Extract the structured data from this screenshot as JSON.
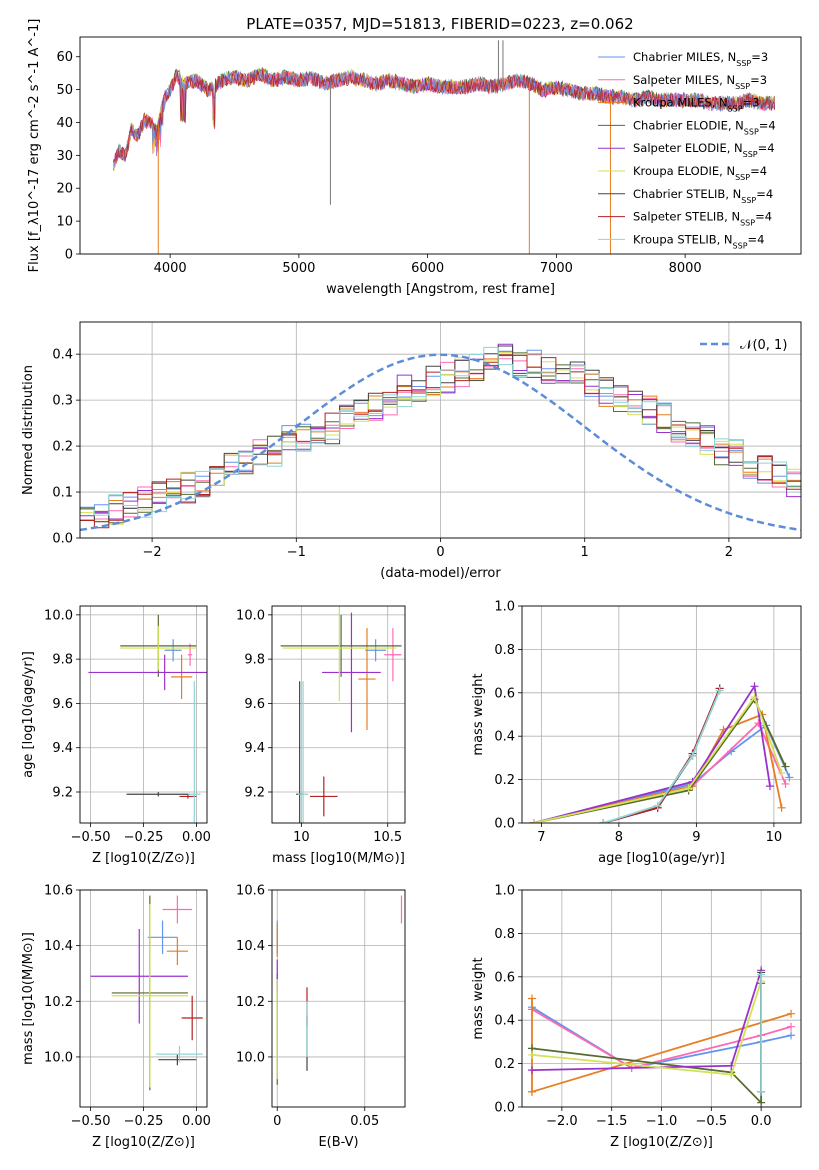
{
  "figure": {
    "title": "PLATE=0357, MJD=51813, FIBERID=0223, z=0.062"
  },
  "colors": {
    "chabrier_miles": "#6495ED",
    "salpeter_miles": "#FF69B4",
    "kroupa_miles": "#E67E22",
    "chabrier_elodie": "#556B2F",
    "salpeter_elodie": "#9932CC",
    "kroupa_elodie": "#D4E157",
    "chabrier_stelib": "#444444",
    "salpeter_stelib": "#B22222",
    "kroupa_stelib": "#8FD5D5",
    "gauss": "#5B8DD9",
    "grid": "#b0b0b0"
  },
  "chart_data": [
    {
      "id": "spectrum",
      "type": "line",
      "xlabel": "wavelength [Angstrom, rest frame]",
      "ylabel": "Flux [f_λ10^-17 erg cm^-2 s^-1 A^-1]",
      "xlim": [
        3300,
        8900
      ],
      "ylim": [
        0,
        66
      ],
      "xticks": [
        4000,
        5000,
        6000,
        7000,
        8000
      ],
      "yticks": [
        0,
        10,
        20,
        30,
        40,
        50,
        60
      ],
      "grid": false,
      "legend_position": "top-right",
      "legend": [
        {
          "label": "Chabrier MILES, N_SSP=3",
          "color_key": "chabrier_miles"
        },
        {
          "label": "Salpeter MILES, N_SSP=3",
          "color_key": "salpeter_miles"
        },
        {
          "label": "Kroupa MILES, N_SSP=3",
          "color_key": "kroupa_miles"
        },
        {
          "label": "Chabrier ELODIE, N_SSP=4",
          "color_key": "chabrier_elodie"
        },
        {
          "label": "Salpeter ELODIE, N_SSP=4",
          "color_key": "salpeter_elodie"
        },
        {
          "label": "Kroupa ELODIE, N_SSP=4",
          "color_key": "kroupa_elodie"
        },
        {
          "label": "Chabrier STELIB, N_SSP=4",
          "color_key": "chabrier_stelib"
        },
        {
          "label": "Salpeter STELIB, N_SSP=4",
          "color_key": "salpeter_stelib"
        },
        {
          "label": "Kroupa STELIB, N_SSP=4",
          "color_key": "kroupa_stelib"
        }
      ],
      "envelope": [
        [
          3560,
          27
        ],
        [
          3600,
          32
        ],
        [
          3650,
          30
        ],
        [
          3700,
          38
        ],
        [
          3750,
          36
        ],
        [
          3800,
          41
        ],
        [
          3850,
          40
        ],
        [
          3900,
          38
        ],
        [
          3950,
          47
        ],
        [
          4000,
          50
        ],
        [
          4050,
          55
        ],
        [
          4100,
          52
        ],
        [
          4200,
          53
        ],
        [
          4300,
          50
        ],
        [
          4400,
          53
        ],
        [
          4500,
          54
        ],
        [
          4600,
          53
        ],
        [
          4700,
          55
        ],
        [
          4800,
          53
        ],
        [
          4900,
          54
        ],
        [
          5000,
          53
        ],
        [
          5100,
          54
        ],
        [
          5200,
          52
        ],
        [
          5300,
          53
        ],
        [
          5400,
          54
        ],
        [
          5500,
          53
        ],
        [
          5600,
          52
        ],
        [
          5700,
          53
        ],
        [
          5800,
          52
        ],
        [
          5900,
          51
        ],
        [
          6000,
          52
        ],
        [
          6100,
          51
        ],
        [
          6200,
          51
        ],
        [
          6300,
          51
        ],
        [
          6400,
          52
        ],
        [
          6500,
          51
        ],
        [
          6600,
          52
        ],
        [
          6700,
          53
        ],
        [
          6800,
          52
        ],
        [
          6900,
          50
        ],
        [
          7000,
          51
        ],
        [
          7100,
          50
        ],
        [
          7200,
          49
        ],
        [
          7300,
          49
        ],
        [
          7400,
          48
        ],
        [
          7500,
          48
        ],
        [
          7600,
          47
        ],
        [
          7700,
          48
        ],
        [
          7800,
          47
        ],
        [
          7900,
          47
        ],
        [
          8000,
          47
        ],
        [
          8100,
          47
        ],
        [
          8200,
          46
        ],
        [
          8300,
          46
        ],
        [
          8400,
          46
        ],
        [
          8500,
          47
        ],
        [
          8600,
          46
        ],
        [
          8700,
          46
        ]
      ],
      "spikes": [
        {
          "x": 3908,
          "y": 0
        },
        {
          "x": 5245,
          "y": 15
        },
        {
          "x": 6550,
          "y": 65
        },
        {
          "x": 6585,
          "y": 65
        },
        {
          "x": 6790,
          "y": 0
        },
        {
          "x": 7420,
          "y": 0
        }
      ]
    },
    {
      "id": "residuals",
      "type": "histogram",
      "xlabel": "(data-model)/error",
      "ylabel": "Normed distribution",
      "xlim": [
        -2.5,
        2.5
      ],
      "ylim": [
        0,
        0.47
      ],
      "xticks": [
        -2,
        -1,
        0,
        1,
        2
      ],
      "yticks": [
        0.0,
        0.1,
        0.2,
        0.3,
        0.4
      ],
      "grid": true,
      "legend_position": "top-right",
      "legend": [
        {
          "label": "𝒩(0, 1)",
          "color_key": "gauss"
        }
      ],
      "bin_start": -2.5,
      "bin_width": 0.1,
      "mean_profile": [
        0.04,
        0.05,
        0.06,
        0.07,
        0.08,
        0.09,
        0.1,
        0.11,
        0.12,
        0.13,
        0.15,
        0.16,
        0.18,
        0.19,
        0.21,
        0.22,
        0.23,
        0.24,
        0.26,
        0.27,
        0.29,
        0.3,
        0.32,
        0.33,
        0.34,
        0.35,
        0.36,
        0.37,
        0.38,
        0.39,
        0.38,
        0.38,
        0.37,
        0.36,
        0.35,
        0.33,
        0.32,
        0.31,
        0.29,
        0.28,
        0.26,
        0.24,
        0.23,
        0.21,
        0.19,
        0.18,
        0.16,
        0.15,
        0.14,
        0.12
      ]
    },
    {
      "id": "age-vs-Z",
      "type": "errorbar",
      "xlabel": "Z [log10(Z/Z⊙)]",
      "ylabel": "age  [log10(age/yr)]",
      "xlim": [
        -0.55,
        0.05
      ],
      "ylim": [
        9.06,
        10.04
      ],
      "xticks": [
        -0.5,
        -0.25,
        0.0
      ],
      "xticklabels": [
        "−0.50",
        "−0.25",
        "0.00"
      ],
      "yticks": [
        9.2,
        9.4,
        9.6,
        9.8,
        10.0
      ],
      "grid": true,
      "points": [
        {
          "c": "chabrier_miles",
          "x": -0.11,
          "xe": 0.04,
          "y": 9.84,
          "ye": 0.05
        },
        {
          "c": "salpeter_miles",
          "x": -0.03,
          "xe": 0.01,
          "y": 9.82,
          "ye": 0.05
        },
        {
          "c": "kroupa_miles",
          "x": -0.07,
          "xe": 0.05,
          "y": 9.72,
          "ye": 0.1
        },
        {
          "c": "chabrier_elodie",
          "x": -0.18,
          "xe": 0.18,
          "y": 9.86,
          "ye": 0.14
        },
        {
          "c": "salpeter_elodie",
          "x": -0.15,
          "xe": 0.36,
          "y": 9.74,
          "ye": 0.08
        },
        {
          "c": "kroupa_elodie",
          "x": -0.18,
          "xe": 0.18,
          "y": 9.85,
          "ye": 0.1
        },
        {
          "c": "chabrier_stelib",
          "x": -0.18,
          "xe": 0.15,
          "y": 9.19,
          "ye": 0.01
        },
        {
          "c": "salpeter_stelib",
          "x": -0.04,
          "xe": 0.04,
          "y": 9.18,
          "ye": 0.01
        },
        {
          "c": "kroupa_stelib",
          "x": -0.01,
          "xe": 0.03,
          "y": 9.19,
          "ye": 0.51
        }
      ]
    },
    {
      "id": "age-vs-mass",
      "type": "errorbar",
      "xlabel": "mass [log10(M/M⊙)]",
      "ylabel": "",
      "xlim": [
        9.83,
        10.6
      ],
      "ylim": [
        9.06,
        10.04
      ],
      "xticks": [
        10.0,
        10.5
      ],
      "yticks": [
        9.2,
        9.4,
        9.6,
        9.8,
        10.0
      ],
      "grid": true,
      "points": [
        {
          "c": "chabrier_miles",
          "x": 10.43,
          "xe": 0.06,
          "y": 9.84,
          "ye": 0.05
        },
        {
          "c": "salpeter_miles",
          "x": 10.53,
          "xe": 0.05,
          "y": 9.82,
          "ye": 0.12
        },
        {
          "c": "kroupa_miles",
          "x": 10.38,
          "xe": 0.05,
          "y": 9.71,
          "ye": 0.23
        },
        {
          "c": "chabrier_elodie",
          "x": 10.23,
          "xe": 0.35,
          "y": 9.86,
          "ye": 0.14
        },
        {
          "c": "salpeter_elodie",
          "x": 10.29,
          "xe": 0.17,
          "y": 9.74,
          "ye": 0.27
        },
        {
          "c": "kroupa_elodie",
          "x": 10.22,
          "xe": 0.33,
          "y": 9.85,
          "ye": 0.24
        },
        {
          "c": "chabrier_stelib",
          "x": 9.99,
          "xe": 0.02,
          "y": 9.19,
          "ye": 0.51
        },
        {
          "c": "salpeter_stelib",
          "x": 10.13,
          "xe": 0.08,
          "y": 9.18,
          "ye": 0.09
        },
        {
          "c": "kroupa_stelib",
          "x": 10.01,
          "xe": 0.03,
          "y": 9.19,
          "ye": 0.51
        }
      ]
    },
    {
      "id": "weight-vs-age",
      "type": "line",
      "xlabel": "age  [log10(age/yr)]",
      "ylabel": "mass weight",
      "xlim": [
        6.75,
        10.35
      ],
      "ylim": [
        0,
        1.0
      ],
      "xticks": [
        7,
        8,
        9,
        10
      ],
      "yticks": [
        0.0,
        0.2,
        0.4,
        0.6,
        0.8,
        1.0
      ],
      "grid": true,
      "series": [
        {
          "c": "chabrier_miles",
          "x": [
            6.9,
            8.95,
            9.45,
            9.9,
            10.2
          ],
          "y": [
            0.0,
            0.18,
            0.33,
            0.45,
            0.21
          ]
        },
        {
          "c": "salpeter_miles",
          "x": [
            6.9,
            8.95,
            9.8,
            10.15
          ],
          "y": [
            0.0,
            0.17,
            0.46,
            0.18
          ]
        },
        {
          "c": "kroupa_miles",
          "x": [
            6.9,
            8.95,
            9.35,
            9.85,
            10.1
          ],
          "y": [
            0.0,
            0.17,
            0.43,
            0.5,
            0.07
          ]
        },
        {
          "c": "chabrier_elodie",
          "x": [
            6.9,
            8.9,
            9.75,
            10.15
          ],
          "y": [
            0.0,
            0.15,
            0.57,
            0.26
          ]
        },
        {
          "c": "salpeter_elodie",
          "x": [
            6.9,
            8.95,
            9.75,
            9.95
          ],
          "y": [
            0.0,
            0.19,
            0.63,
            0.17
          ]
        },
        {
          "c": "kroupa_elodie",
          "x": [
            6.9,
            8.9,
            9.75,
            10.1
          ],
          "y": [
            0.0,
            0.16,
            0.58,
            0.23
          ]
        },
        {
          "c": "chabrier_stelib",
          "x": [
            7.8,
            8.5,
            8.95,
            9.3
          ],
          "y": [
            0.0,
            0.07,
            0.31,
            0.62
          ]
        },
        {
          "c": "salpeter_stelib",
          "x": [
            7.8,
            8.5,
            8.95,
            9.3
          ],
          "y": [
            0.0,
            0.07,
            0.32,
            0.62
          ]
        },
        {
          "c": "kroupa_stelib",
          "x": [
            7.8,
            8.5,
            8.95,
            9.3
          ],
          "y": [
            0.0,
            0.08,
            0.31,
            0.61
          ]
        }
      ]
    },
    {
      "id": "mass-vs-Z",
      "type": "errorbar",
      "xlabel": "Z [log10(Z/Z⊙)]",
      "ylabel": "mass [log10(M/M⊙)]",
      "xlim": [
        -0.55,
        0.05
      ],
      "ylim": [
        9.82,
        10.6
      ],
      "xticks": [
        -0.5,
        -0.25,
        0.0
      ],
      "xticklabels": [
        "−0.50",
        "−0.25",
        "0.00"
      ],
      "yticks": [
        10.0,
        10.2,
        10.4,
        10.6
      ],
      "grid": true,
      "points": [
        {
          "c": "chabrier_miles",
          "x": -0.16,
          "xe": 0.07,
          "y": 10.43,
          "ye": 0.06
        },
        {
          "c": "salpeter_miles",
          "x": -0.09,
          "xe": 0.07,
          "y": 10.53,
          "ye": 0.05
        },
        {
          "c": "kroupa_miles",
          "x": -0.09,
          "xe": 0.05,
          "y": 10.38,
          "ye": 0.05
        },
        {
          "c": "chabrier_elodie",
          "x": -0.22,
          "xe": 0.18,
          "y": 10.23,
          "ye": 0.35
        },
        {
          "c": "salpeter_elodie",
          "x": -0.27,
          "xe": 0.23,
          "y": 10.29,
          "ye": 0.17
        },
        {
          "c": "kroupa_elodie",
          "x": -0.22,
          "xe": 0.18,
          "y": 10.22,
          "ye": 0.33
        },
        {
          "c": "chabrier_stelib",
          "x": -0.09,
          "xe": 0.09,
          "y": 9.99,
          "ye": 0.02
        },
        {
          "c": "salpeter_stelib",
          "x": -0.02,
          "xe": 0.05,
          "y": 10.14,
          "ye": 0.08
        },
        {
          "c": "kroupa_stelib",
          "x": -0.08,
          "xe": 0.11,
          "y": 10.01,
          "ye": 0.03
        }
      ]
    },
    {
      "id": "mass-vs-EBV",
      "type": "errorbar",
      "xlabel": "E(B-V)",
      "ylabel": "",
      "xlim": [
        -0.003,
        0.073
      ],
      "ylim": [
        9.82,
        10.6
      ],
      "xticks": [
        0.0,
        0.05
      ],
      "yticks": [
        10.0,
        10.2,
        10.4,
        10.6
      ],
      "grid": true,
      "points": [
        {
          "c": "chabrier_miles",
          "x": 0.0,
          "xe": 0,
          "y": 10.43,
          "ye": 0.06
        },
        {
          "c": "salpeter_miles",
          "x": 0.071,
          "xe": 0,
          "y": 10.53,
          "ye": 0.05
        },
        {
          "c": "kroupa_miles",
          "x": 0.0,
          "xe": 0,
          "y": 10.42,
          "ye": 0.06
        },
        {
          "c": "chabrier_elodie",
          "x": 0.0,
          "xe": 0,
          "y": 10.1,
          "ye": 0.2
        },
        {
          "c": "salpeter_elodie",
          "x": 0.0,
          "xe": 0,
          "y": 10.29,
          "ye": 0.06
        },
        {
          "c": "kroupa_elodie",
          "x": 0.0,
          "xe": 0,
          "y": 10.1,
          "ye": 0.18
        },
        {
          "c": "chabrier_stelib",
          "x": 0.017,
          "xe": 0,
          "y": 10.05,
          "ye": 0.1
        },
        {
          "c": "salpeter_stelib",
          "x": 0.017,
          "xe": 0,
          "y": 10.18,
          "ye": 0.07
        },
        {
          "c": "kroupa_stelib",
          "x": 0.017,
          "xe": 0,
          "y": 10.1,
          "ye": 0.1
        }
      ]
    },
    {
      "id": "weight-vs-Z",
      "type": "line",
      "xlabel": "Z [log10(Z/Z⊙)]",
      "ylabel": "mass weight",
      "xlim": [
        -2.4,
        0.4
      ],
      "ylim": [
        0,
        1.0
      ],
      "xticks": [
        -2.0,
        -1.5,
        -1.0,
        -0.5,
        0.0
      ],
      "xticklabels": [
        "−2.0",
        "−1.5",
        "−1.0",
        "−0.5",
        "0.0"
      ],
      "yticks": [
        0.0,
        0.2,
        0.4,
        0.6,
        0.8,
        1.0
      ],
      "grid": true,
      "series": [
        {
          "c": "chabrier_miles",
          "x": [
            -2.3,
            -1.3,
            0.0,
            0.3
          ],
          "y": [
            0.46,
            0.18,
            0.3,
            0.33
          ]
        },
        {
          "c": "salpeter_miles",
          "x": [
            -2.3,
            -1.3,
            0.0,
            0.3
          ],
          "y": [
            0.45,
            0.18,
            0.33,
            0.37
          ]
        },
        {
          "c": "kroupa_miles",
          "x": [
            -2.3,
            0.3
          ],
          "y": [
            0.07,
            0.43
          ]
        },
        {
          "c": "kroupa_miles",
          "x": [
            -2.3,
            -2.3
          ],
          "y": [
            0.07,
            0.5
          ]
        },
        {
          "c": "chabrier_elodie",
          "x": [
            -2.3,
            -0.3,
            0.0,
            0.0
          ],
          "y": [
            0.27,
            0.16,
            0.02,
            0.57
          ]
        },
        {
          "c": "salpeter_elodie",
          "x": [
            -2.3,
            -0.3,
            0.0
          ],
          "y": [
            0.17,
            0.19,
            0.63
          ]
        },
        {
          "c": "kroupa_elodie",
          "x": [
            -2.3,
            -0.3,
            0.0
          ],
          "y": [
            0.24,
            0.15,
            0.58
          ]
        },
        {
          "c": "chabrier_stelib",
          "x": [
            0.0,
            0.0
          ],
          "y": [
            0.07,
            0.62
          ]
        },
        {
          "c": "kroupa_stelib",
          "x": [
            0.0,
            0.0
          ],
          "y": [
            0.07,
            0.61
          ]
        }
      ]
    }
  ]
}
